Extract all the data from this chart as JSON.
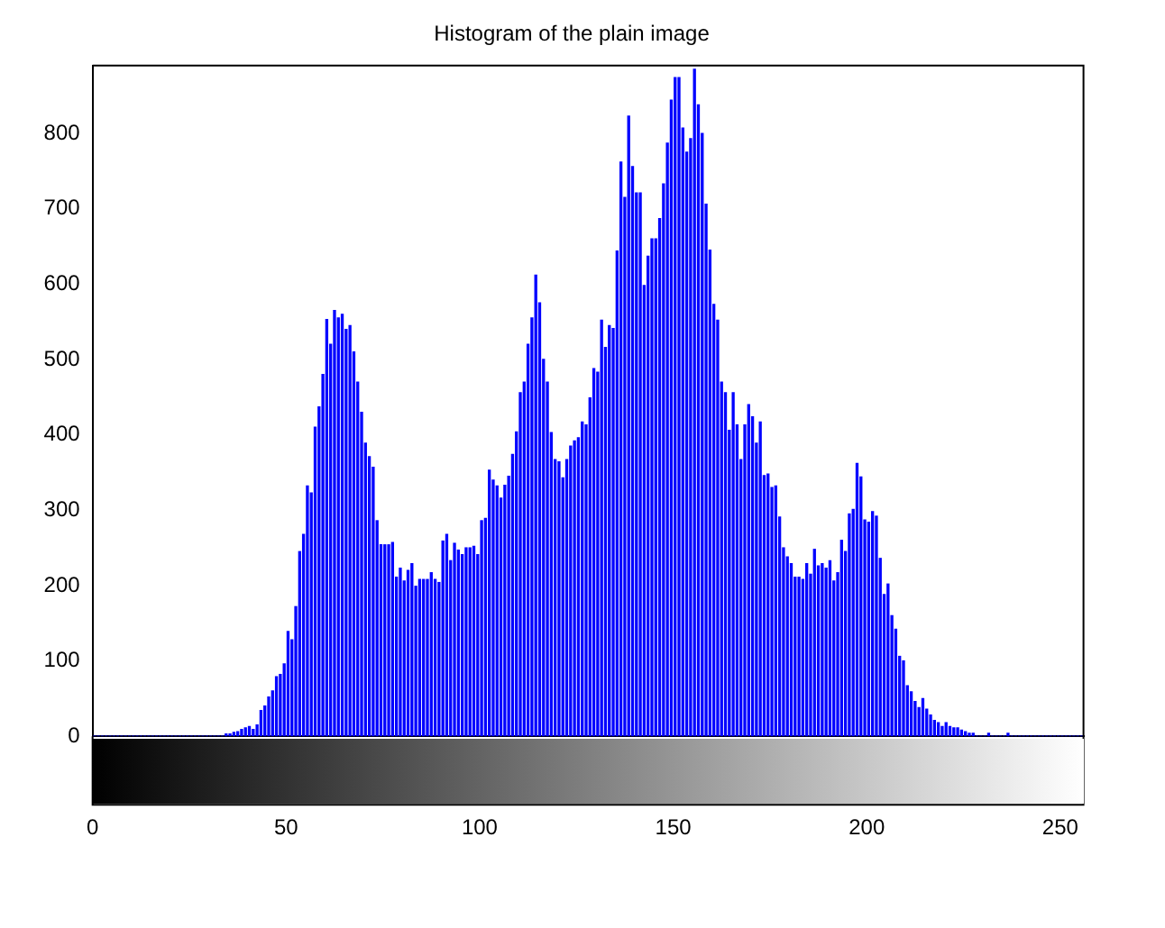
{
  "chart_data": {
    "type": "histogram",
    "title": "Histogram of the plain image",
    "color": "#0000ff",
    "bins": [
      0,
      1,
      2,
      3,
      4,
      5,
      6,
      7,
      8,
      9,
      10,
      11,
      12,
      13,
      14,
      15,
      16,
      17,
      18,
      19,
      20,
      21,
      22,
      23,
      24,
      25,
      26,
      27,
      28,
      29,
      30,
      31,
      32,
      33,
      34,
      35,
      36,
      37,
      38,
      39,
      40,
      41,
      42,
      43,
      44,
      45,
      46,
      47,
      48,
      49,
      50,
      51,
      52,
      53,
      54,
      55,
      56,
      57,
      58,
      59,
      60,
      61,
      62,
      63,
      64,
      65,
      66,
      67,
      68,
      69,
      70,
      71,
      72,
      73,
      74,
      75,
      76,
      77,
      78,
      79,
      80,
      81,
      82,
      83,
      84,
      85,
      86,
      87,
      88,
      89,
      90,
      91,
      92,
      93,
      94,
      95,
      96,
      97,
      98,
      99,
      100,
      101,
      102,
      103,
      104,
      105,
      106,
      107,
      108,
      109,
      110,
      111,
      112,
      113,
      114,
      115,
      116,
      117,
      118,
      119,
      120,
      121,
      122,
      123,
      124,
      125,
      126,
      127,
      128,
      129,
      130,
      131,
      132,
      133,
      134,
      135,
      136,
      137,
      138,
      139,
      140,
      141,
      142,
      143,
      144,
      145,
      146,
      147,
      148,
      149,
      150,
      151,
      152,
      153,
      154,
      155,
      156,
      157,
      158,
      159,
      160,
      161,
      162,
      163,
      164,
      165,
      166,
      167,
      168,
      169,
      170,
      171,
      172,
      173,
      174,
      175,
      176,
      177,
      178,
      179,
      180,
      181,
      182,
      183,
      184,
      185,
      186,
      187,
      188,
      189,
      190,
      191,
      192,
      193,
      194,
      195,
      196,
      197,
      198,
      199,
      200,
      201,
      202,
      203,
      204,
      205,
      206,
      207,
      208,
      209,
      210,
      211,
      212,
      213,
      214,
      215,
      216,
      217,
      218,
      219,
      220,
      221,
      222,
      223,
      224,
      225,
      226,
      227,
      228,
      229,
      230,
      231,
      232,
      233,
      234,
      235,
      236,
      237,
      238,
      239,
      240,
      241,
      242,
      243,
      244,
      245,
      246,
      247,
      248,
      249,
      250,
      251,
      252,
      253,
      254,
      255,
      256
    ],
    "values": [
      0,
      0,
      0,
      0,
      0,
      0,
      0,
      0,
      0,
      0,
      0,
      0,
      0,
      0,
      0,
      0,
      0,
      0,
      0,
      0,
      0,
      0,
      0,
      0,
      0,
      0,
      0,
      0,
      0,
      0,
      0,
      0,
      0,
      0,
      3,
      3,
      5,
      6,
      9,
      11,
      13,
      9,
      15,
      34,
      40,
      52,
      60,
      79,
      82,
      96,
      139,
      128,
      172,
      245,
      268,
      332,
      323,
      410,
      437,
      480,
      553,
      520,
      565,
      555,
      560,
      540,
      545,
      510,
      470,
      430,
      389,
      371,
      357,
      286,
      254,
      254,
      254,
      257,
      211,
      223,
      206,
      220,
      229,
      199,
      208,
      208,
      208,
      217,
      208,
      204,
      259,
      268,
      233,
      256,
      247,
      241,
      250,
      250,
      252,
      241,
      286,
      289,
      353,
      340,
      332,
      316,
      333,
      345,
      374,
      404,
      456,
      470,
      520,
      555,
      612,
      575,
      500,
      470,
      403,
      367,
      364,
      343,
      367,
      385,
      392,
      396,
      417,
      413,
      449,
      488,
      483,
      552,
      516,
      545,
      541,
      644,
      762,
      715,
      823,
      756,
      721,
      721,
      598,
      637,
      660,
      660,
      687,
      733,
      787,
      844,
      874,
      874,
      807,
      775,
      793,
      885,
      838,
      800,
      706,
      645,
      573,
      552,
      470,
      456,
      406,
      456,
      413,
      367,
      413,
      440,
      424,
      389,
      417,
      346,
      348,
      330,
      332,
      291,
      250,
      238,
      229,
      211,
      211,
      208,
      229,
      215,
      248,
      226,
      229,
      223,
      233,
      206,
      217,
      260,
      245,
      295,
      301,
      362,
      344,
      287,
      284,
      298,
      292,
      236,
      188,
      202,
      160,
      142,
      106,
      100,
      67,
      59,
      46,
      38,
      50,
      36,
      28,
      21,
      18,
      13,
      18,
      13,
      11,
      11,
      8,
      6,
      4,
      4,
      0,
      0,
      0,
      4,
      0,
      0,
      0,
      0,
      4,
      0,
      0,
      0,
      0,
      0,
      0,
      0,
      0,
      0,
      0,
      0,
      0,
      0,
      0,
      0,
      0,
      0,
      0,
      0
    ],
    "xlim": [
      0,
      256
    ],
    "xticks": [
      0,
      50,
      100,
      150,
      200,
      250
    ],
    "ylim": [
      0,
      890
    ],
    "yticks": [
      0,
      100,
      200,
      300,
      400,
      500,
      600,
      700,
      800
    ],
    "grid": false,
    "legend": false
  }
}
